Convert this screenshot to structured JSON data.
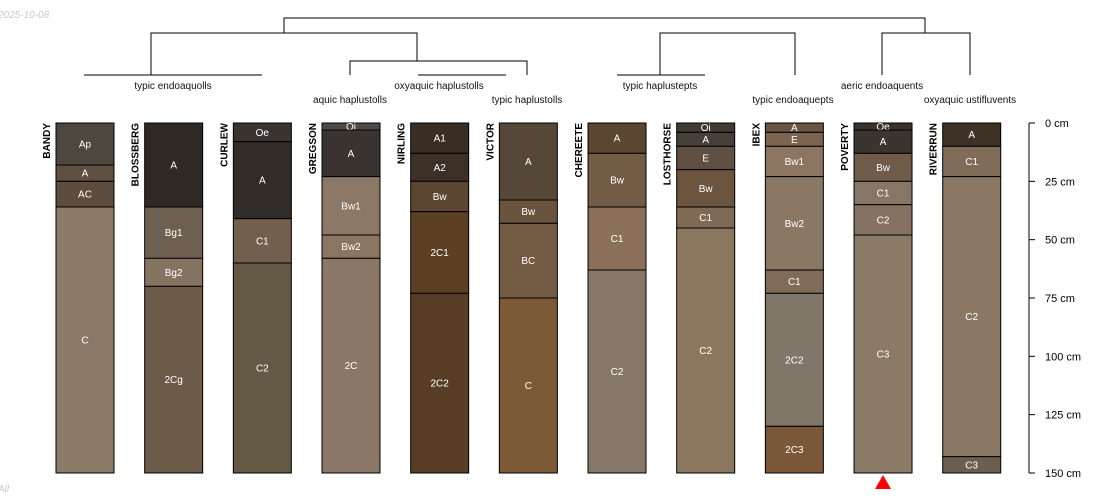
{
  "date_label": "2025-10-08",
  "corner_label": "All",
  "depth_axis": {
    "unit": "cm",
    "ticks": [
      {
        "value": 0,
        "label": "0 cm"
      },
      {
        "value": 25,
        "label": "25 cm"
      },
      {
        "value": 50,
        "label": "50 cm"
      },
      {
        "value": 75,
        "label": "75 cm"
      },
      {
        "value": 100,
        "label": "100 cm"
      },
      {
        "value": 125,
        "label": "125 cm"
      },
      {
        "value": 150,
        "label": "150 cm"
      }
    ]
  },
  "taxonomy_labels": [
    {
      "text": "typic endoaquolls"
    },
    {
      "text": "oxyaquic haplustolls"
    },
    {
      "text": "aquic haplustolls"
    },
    {
      "text": "typic haplustolls"
    },
    {
      "text": "typic haplustepts"
    },
    {
      "text": "aeric endoaquents"
    },
    {
      "text": "typic endoaquepts"
    },
    {
      "text": "oxyaquic ustifluvents"
    }
  ],
  "profiles": [
    {
      "name": "BANDY",
      "horizons": [
        {
          "name": "Ap",
          "top": 0,
          "bottom": 18,
          "color": "#4e4740"
        },
        {
          "name": "A",
          "top": 18,
          "bottom": 25,
          "color": "#5f4f40"
        },
        {
          "name": "AC",
          "top": 25,
          "bottom": 36,
          "color": "#5c4d3e"
        },
        {
          "name": "C",
          "top": 36,
          "bottom": 150,
          "color": "#8c7a69"
        }
      ]
    },
    {
      "name": "BLOSSBERG",
      "horizons": [
        {
          "name": "A",
          "top": 0,
          "bottom": 36,
          "color": "#2e2925"
        },
        {
          "name": "Bg1",
          "top": 36,
          "bottom": 58,
          "color": "#6e6050"
        },
        {
          "name": "Bg2",
          "top": 58,
          "bottom": 70,
          "color": "#857362"
        },
        {
          "name": "2Cg",
          "top": 70,
          "bottom": 150,
          "color": "#6c5b49"
        }
      ]
    },
    {
      "name": "CURLEW",
      "horizons": [
        {
          "name": "Oe",
          "top": 0,
          "bottom": 8,
          "color": "#3a3430"
        },
        {
          "name": "A",
          "top": 8,
          "bottom": 41,
          "color": "#322c28"
        },
        {
          "name": "C1",
          "top": 41,
          "bottom": 60,
          "color": "#725f4d"
        },
        {
          "name": "C2",
          "top": 60,
          "bottom": 150,
          "color": "#635944"
        }
      ]
    },
    {
      "name": "GREGSON",
      "horizons": [
        {
          "name": "Oi",
          "top": 0,
          "bottom": 3,
          "color": "#4f4a45"
        },
        {
          "name": "A",
          "top": 3,
          "bottom": 23,
          "color": "#3a3430"
        },
        {
          "name": "Bw1",
          "top": 23,
          "bottom": 48,
          "color": "#8c7866"
        },
        {
          "name": "Bw2",
          "top": 48,
          "bottom": 58,
          "color": "#8a7562"
        },
        {
          "name": "2C",
          "top": 58,
          "bottom": 150,
          "color": "#8a7767"
        }
      ]
    },
    {
      "name": "NIRLING",
      "horizons": [
        {
          "name": "A1",
          "top": 0,
          "bottom": 13,
          "color": "#3a2e24"
        },
        {
          "name": "A2",
          "top": 13,
          "bottom": 25,
          "color": "#3c3027"
        },
        {
          "name": "Bw",
          "top": 25,
          "bottom": 38,
          "color": "#5b4631"
        },
        {
          "name": "2C1",
          "top": 38,
          "bottom": 73,
          "color": "#5c3f23"
        },
        {
          "name": "2C2",
          "top": 73,
          "bottom": 150,
          "color": "#573d24"
        }
      ]
    },
    {
      "name": "VICTOR",
      "horizons": [
        {
          "name": "A",
          "top": 0,
          "bottom": 33,
          "color": "#554839"
        },
        {
          "name": "Bw",
          "top": 33,
          "bottom": 43,
          "color": "#6b543d"
        },
        {
          "name": "BC",
          "top": 43,
          "bottom": 75,
          "color": "#735b43"
        },
        {
          "name": "C",
          "top": 75,
          "bottom": 150,
          "color": "#7b5a35"
        }
      ]
    },
    {
      "name": "CHEREETE",
      "horizons": [
        {
          "name": "A",
          "top": 0,
          "bottom": 13,
          "color": "#5b4632"
        },
        {
          "name": "Bw",
          "top": 13,
          "bottom": 36,
          "color": "#735c45"
        },
        {
          "name": "C1",
          "top": 36,
          "bottom": 63,
          "color": "#8a7058"
        },
        {
          "name": "C2",
          "top": 63,
          "bottom": 150,
          "color": "#85786a"
        }
      ]
    },
    {
      "name": "LOSTHORSE",
      "horizons": [
        {
          "name": "Oi",
          "top": 0,
          "bottom": 4,
          "color": "#403a35"
        },
        {
          "name": "A",
          "top": 4,
          "bottom": 10,
          "color": "#463f38"
        },
        {
          "name": "E",
          "top": 10,
          "bottom": 20,
          "color": "#5f5043"
        },
        {
          "name": "Bw",
          "top": 20,
          "bottom": 36,
          "color": "#6b553e"
        },
        {
          "name": "C1",
          "top": 36,
          "bottom": 45,
          "color": "#7f6a55"
        },
        {
          "name": "C2",
          "top": 45,
          "bottom": 150,
          "color": "#8a775e"
        }
      ]
    },
    {
      "name": "IBEX",
      "horizons": [
        {
          "name": "A",
          "top": 0,
          "bottom": 4,
          "color": "#6a5543"
        },
        {
          "name": "E",
          "top": 4,
          "bottom": 10,
          "color": "#7c6450"
        },
        {
          "name": "Bw1",
          "top": 10,
          "bottom": 23,
          "color": "#8b7560"
        },
        {
          "name": "Bw2",
          "top": 23,
          "bottom": 63,
          "color": "#8a7764"
        },
        {
          "name": "C1",
          "top": 63,
          "bottom": 73,
          "color": "#7f6b58"
        },
        {
          "name": "2C2",
          "top": 73,
          "bottom": 130,
          "color": "#807669"
        },
        {
          "name": "2C3",
          "top": 130,
          "bottom": 150,
          "color": "#7b5739"
        }
      ]
    },
    {
      "name": "POVERTY",
      "horizons": [
        {
          "name": "Oe",
          "top": 0,
          "bottom": 3,
          "color": "#3a332d"
        },
        {
          "name": "A",
          "top": 3,
          "bottom": 13,
          "color": "#3c342e"
        },
        {
          "name": "Bw",
          "top": 13,
          "bottom": 25,
          "color": "#6e5b4a"
        },
        {
          "name": "C1",
          "top": 25,
          "bottom": 35,
          "color": "#877565"
        },
        {
          "name": "C2",
          "top": 35,
          "bottom": 48,
          "color": "#857262"
        },
        {
          "name": "C3",
          "top": 48,
          "bottom": 150,
          "color": "#8b7a67"
        }
      ]
    },
    {
      "name": "RIVERRUN",
      "horizons": [
        {
          "name": "A",
          "top": 0,
          "bottom": 10,
          "color": "#3e3226"
        },
        {
          "name": "C1",
          "top": 10,
          "bottom": 23,
          "color": "#7f6d59"
        },
        {
          "name": "C2",
          "top": 23,
          "bottom": 143,
          "color": "#8a7764"
        },
        {
          "name": "C3",
          "top": 143,
          "bottom": 150,
          "color": "#6b5e4f"
        }
      ]
    }
  ],
  "marker": {
    "profile": "POVERTY",
    "color": "#ff0000"
  }
}
